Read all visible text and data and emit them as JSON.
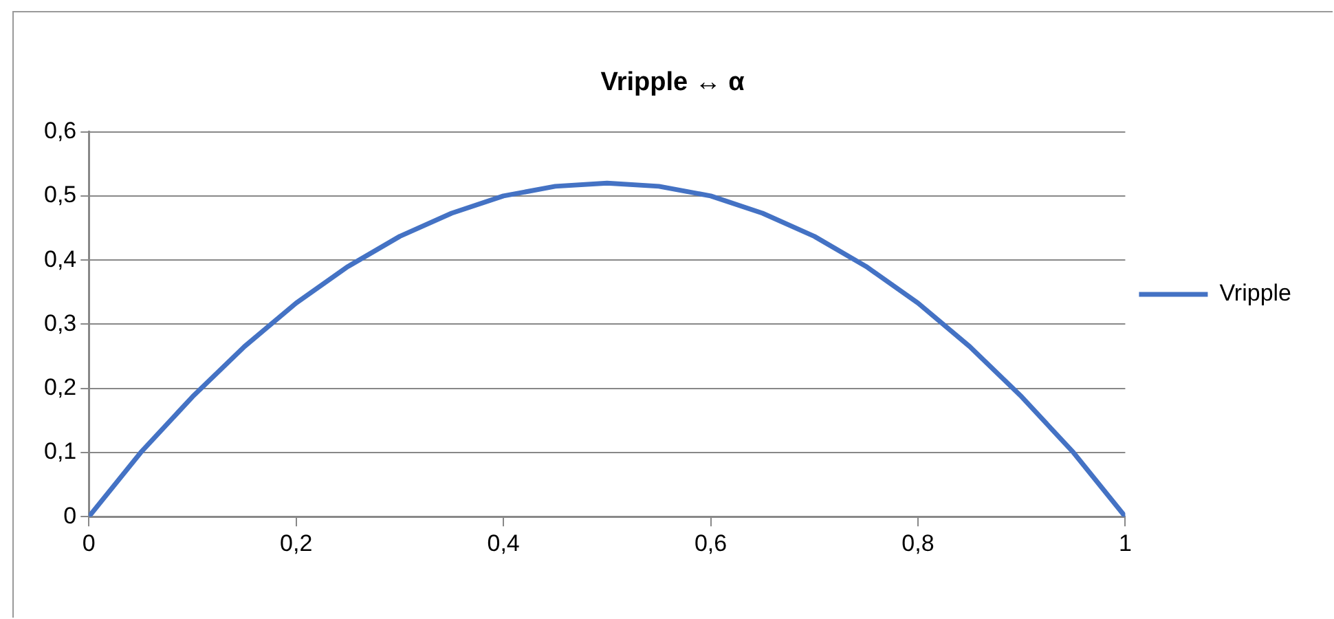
{
  "chart_data": {
    "type": "line",
    "title": "Vripple ↔ α",
    "x": [
      0,
      0.05,
      0.1,
      0.15,
      0.2,
      0.25,
      0.3,
      0.35,
      0.4,
      0.45,
      0.5,
      0.55,
      0.6,
      0.65,
      0.7,
      0.75,
      0.8,
      0.85,
      0.9,
      0.95,
      1
    ],
    "series": [
      {
        "name": "Vripple",
        "color": "#4472c4",
        "values": [
          0,
          0.1,
          0.187,
          0.265,
          0.333,
          0.39,
          0.437,
          0.473,
          0.5,
          0.515,
          0.52,
          0.515,
          0.5,
          0.473,
          0.437,
          0.39,
          0.333,
          0.265,
          0.187,
          0.1,
          0
        ]
      }
    ],
    "xlim": [
      0,
      1
    ],
    "xticks": [
      0,
      {
        "value": 0.2,
        "label": "0,2"
      },
      {
        "value": 0.4,
        "label": "0,4"
      },
      {
        "value": 0.6,
        "label": "0,6"
      },
      {
        "value": 0.8,
        "label": "0,8"
      },
      1
    ],
    "ylim": [
      0,
      0.6
    ],
    "yticks": [
      0,
      {
        "value": 0.1,
        "label": "0,1"
      },
      {
        "value": 0.2,
        "label": "0,2"
      },
      {
        "value": 0.3,
        "label": "0,3"
      },
      {
        "value": 0.4,
        "label": "0,4"
      },
      {
        "value": 0.5,
        "label": "0,5"
      },
      {
        "value": 0.6,
        "label": "0,6"
      }
    ],
    "grid": "y",
    "legend": "right",
    "marker": "none",
    "line_style": "solid"
  }
}
